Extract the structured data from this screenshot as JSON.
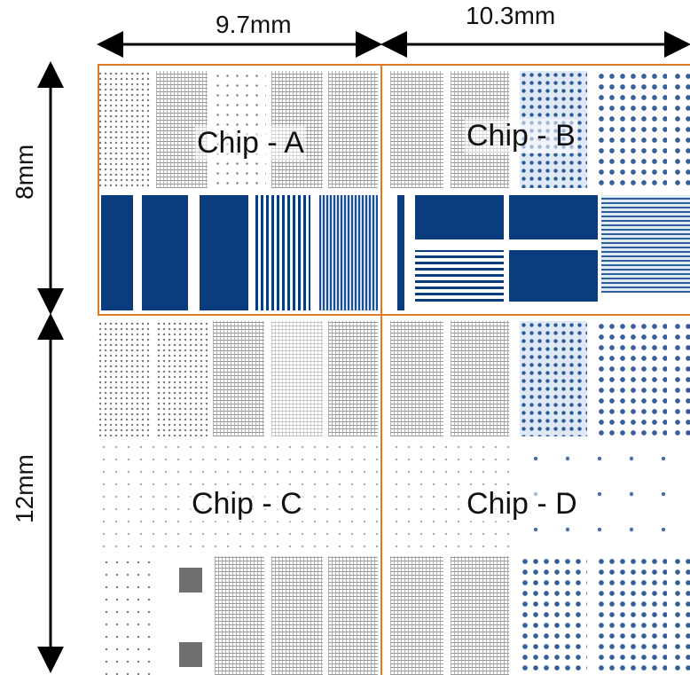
{
  "dimensions": {
    "chip_a_width": "9.7mm",
    "chip_b_width": "10.3mm",
    "top_row_height": "8mm",
    "bottom_row_height": "12mm"
  },
  "chips": {
    "a": "Chip - A",
    "b": "Chip - B",
    "c": "Chip - C",
    "d": "Chip - D"
  },
  "colors": {
    "chip_border": "#e07b22",
    "pattern_blue": "#0a3d7e",
    "arrow": "#000000"
  }
}
